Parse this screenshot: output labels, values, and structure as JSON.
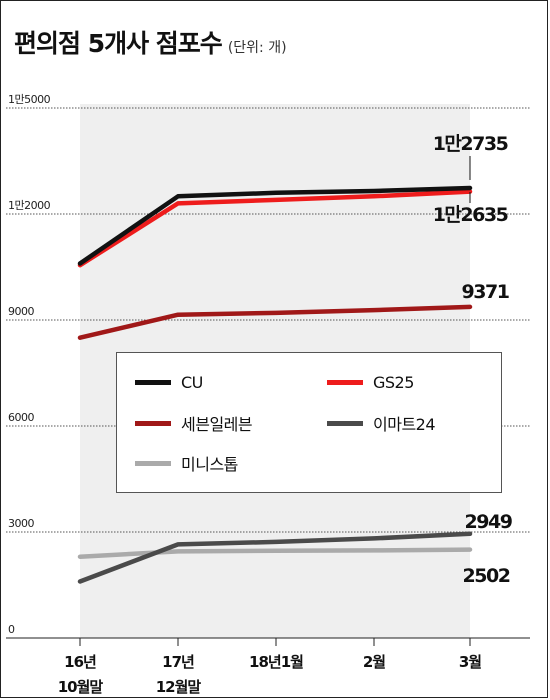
{
  "header": {
    "title": "편의점 5개사 점포수",
    "unit": "(단위: 개)"
  },
  "chart_data": {
    "type": "line",
    "x": [
      "16년 10월말",
      "17년 12월말",
      "18년1월",
      "2월",
      "3월"
    ],
    "x_ticks": [
      {
        "line1": "16년",
        "line2": "10월말"
      },
      {
        "line1": "17년",
        "line2": "12월말"
      },
      {
        "line1": "18년1월",
        "line2": ""
      },
      {
        "line1": "2월",
        "line2": ""
      },
      {
        "line1": "3월",
        "line2": ""
      }
    ],
    "y_ticks": [
      {
        "label": "1만5000",
        "value": 15000
      },
      {
        "label": "1만2000",
        "value": 12000
      },
      {
        "label": "9000",
        "value": 9000
      },
      {
        "label": "6000",
        "value": 6000
      },
      {
        "label": "3000",
        "value": 3000
      },
      {
        "label": "0",
        "value": 0
      }
    ],
    "ylim": [
      0,
      15000
    ],
    "series": [
      {
        "name": "CU",
        "color": "#111111",
        "values": [
          10600,
          12500,
          12600,
          12650,
          12735
        ],
        "end_label": "1만2735"
      },
      {
        "name": "GS25",
        "color": "#ee1c1c",
        "values": [
          10550,
          12300,
          12400,
          12500,
          12635
        ],
        "end_label": "1만2635"
      },
      {
        "name": "세븐일레븐",
        "color": "#a01818",
        "values": [
          8500,
          9150,
          9200,
          9280,
          9371
        ],
        "end_label": "9371"
      },
      {
        "name": "이마트24",
        "color": "#4a4a4a",
        "values": [
          1600,
          2650,
          2720,
          2820,
          2949
        ],
        "end_label": "2949"
      },
      {
        "name": "미니스톱",
        "color": "#aaaaaa",
        "values": [
          2300,
          2450,
          2470,
          2480,
          2502
        ],
        "end_label": "2502"
      }
    ],
    "legend_position": "center"
  }
}
